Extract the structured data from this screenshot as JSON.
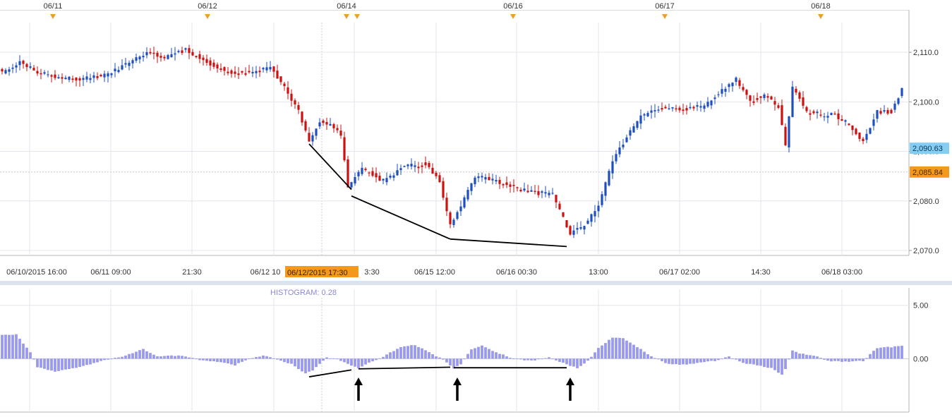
{
  "colors": {
    "up": "#1f4fbf",
    "down": "#cc1111",
    "histogram": "#9999ee",
    "grid": "#e3e6ec",
    "marker": "#f0a020",
    "label_blue": "#86cdf2",
    "label_orange": "#f39a1e",
    "histogram_label": "#8888dd"
  },
  "chart_data": [
    {
      "type": "candlestick",
      "title": "",
      "top_dates": [
        "06/11",
        "06/12",
        "06/14",
        "06/16",
        "06/17",
        "06/18"
      ],
      "time_labels": [
        "06/10/2015 16:00",
        "06/11 09:00",
        "21:30",
        "06/12 10",
        "3:30",
        "06/15 12:00",
        "06/16 00:30",
        "13:00",
        "06/17 02:00",
        "14:30",
        "06/18 03:00"
      ],
      "crosshair_time": "06/12/2015 17:30",
      "y_ticks": [
        "2,070.0",
        "2,080.0",
        "2,090.0",
        "2,100.0",
        "2,110.0"
      ],
      "ylim": [
        2069,
        2116
      ],
      "price_labels": {
        "last": "2,090.63",
        "crosshair": "2,085.84"
      },
      "anchors": [
        {
          "i": 0,
          "p": 2106
        },
        {
          "i": 5,
          "p": 2108
        },
        {
          "i": 10,
          "p": 2106
        },
        {
          "i": 15,
          "p": 2105
        },
        {
          "i": 22,
          "p": 2104.5
        },
        {
          "i": 30,
          "p": 2105.5
        },
        {
          "i": 36,
          "p": 2108
        },
        {
          "i": 42,
          "p": 2110
        },
        {
          "i": 46,
          "p": 2109
        },
        {
          "i": 52,
          "p": 2110.5
        },
        {
          "i": 58,
          "p": 2108
        },
        {
          "i": 64,
          "p": 2106
        },
        {
          "i": 72,
          "p": 2106
        },
        {
          "i": 76,
          "p": 2107
        },
        {
          "i": 80,
          "p": 2103
        },
        {
          "i": 84,
          "p": 2098
        },
        {
          "i": 87,
          "p": 2092
        },
        {
          "i": 90,
          "p": 2096
        },
        {
          "i": 94,
          "p": 2095
        },
        {
          "i": 96,
          "p": 2093
        },
        {
          "i": 98,
          "p": 2083
        },
        {
          "i": 102,
          "p": 2086.5
        },
        {
          "i": 108,
          "p": 2084
        },
        {
          "i": 114,
          "p": 2087
        },
        {
          "i": 120,
          "p": 2087.5
        },
        {
          "i": 124,
          "p": 2084
        },
        {
          "i": 127,
          "p": 2075
        },
        {
          "i": 130,
          "p": 2079
        },
        {
          "i": 134,
          "p": 2085
        },
        {
          "i": 140,
          "p": 2084
        },
        {
          "i": 146,
          "p": 2082.5
        },
        {
          "i": 152,
          "p": 2081.5
        },
        {
          "i": 156,
          "p": 2081.5
        },
        {
          "i": 158,
          "p": 2078
        },
        {
          "i": 161,
          "p": 2073.5
        },
        {
          "i": 165,
          "p": 2075
        },
        {
          "i": 169,
          "p": 2079
        },
        {
          "i": 173,
          "p": 2088
        },
        {
          "i": 177,
          "p": 2093
        },
        {
          "i": 181,
          "p": 2097
        },
        {
          "i": 187,
          "p": 2099
        },
        {
          "i": 193,
          "p": 2098.5
        },
        {
          "i": 199,
          "p": 2099
        },
        {
          "i": 205,
          "p": 2103
        },
        {
          "i": 208,
          "p": 2104.5
        },
        {
          "i": 212,
          "p": 2100
        },
        {
          "i": 216,
          "p": 2101.5
        },
        {
          "i": 220,
          "p": 2099
        },
        {
          "i": 222,
          "p": 2091
        },
        {
          "i": 224,
          "p": 2103
        },
        {
          "i": 228,
          "p": 2098
        },
        {
          "i": 232,
          "p": 2097
        },
        {
          "i": 236,
          "p": 2097.5
        },
        {
          "i": 240,
          "p": 2095
        },
        {
          "i": 244,
          "p": 2092
        },
        {
          "i": 248,
          "p": 2098
        },
        {
          "i": 252,
          "p": 2098
        },
        {
          "i": 255,
          "p": 2102.5
        }
      ],
      "trendlines": [
        {
          "from": [
            87,
            2091.5
          ],
          "to": [
            99,
            2082.3
          ]
        },
        {
          "from": [
            99,
            2081
          ],
          "to": [
            127,
            2072.3
          ]
        },
        {
          "from": [
            127,
            2072.3
          ],
          "to": [
            160,
            2070.8
          ]
        }
      ]
    },
    {
      "type": "histogram",
      "title": "",
      "label": "HISTOGRAM: 0.28",
      "y_ticks": [
        "0.00",
        "5.00"
      ],
      "ylim": [
        -5,
        6.5
      ],
      "anchors": [
        {
          "i": 0,
          "v": 2.2
        },
        {
          "i": 4,
          "v": 2.3
        },
        {
          "i": 8,
          "v": 0.6
        },
        {
          "i": 10,
          "v": -0.8
        },
        {
          "i": 15,
          "v": -1.2
        },
        {
          "i": 22,
          "v": -0.8
        },
        {
          "i": 28,
          "v": -0.2
        },
        {
          "i": 34,
          "v": 0.2
        },
        {
          "i": 40,
          "v": 0.9
        },
        {
          "i": 44,
          "v": 0.2
        },
        {
          "i": 50,
          "v": 0.3
        },
        {
          "i": 56,
          "v": -0.1
        },
        {
          "i": 62,
          "v": -0.3
        },
        {
          "i": 66,
          "v": -0.6
        },
        {
          "i": 70,
          "v": 0.0
        },
        {
          "i": 74,
          "v": 0.3
        },
        {
          "i": 78,
          "v": -0.1
        },
        {
          "i": 82,
          "v": -0.5
        },
        {
          "i": 86,
          "v": -1.4
        },
        {
          "i": 88,
          "v": -1.1
        },
        {
          "i": 92,
          "v": 0.1
        },
        {
          "i": 95,
          "v": 0.0
        },
        {
          "i": 98,
          "v": -0.5
        },
        {
          "i": 101,
          "v": -0.9
        },
        {
          "i": 104,
          "v": -0.4
        },
        {
          "i": 108,
          "v": 0.2
        },
        {
          "i": 113,
          "v": 1.1
        },
        {
          "i": 117,
          "v": 1.3
        },
        {
          "i": 121,
          "v": 0.6
        },
        {
          "i": 125,
          "v": -0.1
        },
        {
          "i": 128,
          "v": -0.9
        },
        {
          "i": 130,
          "v": -0.5
        },
        {
          "i": 133,
          "v": 0.9
        },
        {
          "i": 136,
          "v": 1.2
        },
        {
          "i": 140,
          "v": 0.6
        },
        {
          "i": 145,
          "v": 0.0
        },
        {
          "i": 150,
          "v": -0.2
        },
        {
          "i": 155,
          "v": 0.1
        },
        {
          "i": 159,
          "v": -0.4
        },
        {
          "i": 163,
          "v": -0.9
        },
        {
          "i": 166,
          "v": -0.2
        },
        {
          "i": 169,
          "v": 1.0
        },
        {
          "i": 173,
          "v": 2.0
        },
        {
          "i": 176,
          "v": 1.9
        },
        {
          "i": 180,
          "v": 1.1
        },
        {
          "i": 184,
          "v": 0.2
        },
        {
          "i": 188,
          "v": -0.4
        },
        {
          "i": 192,
          "v": -0.6
        },
        {
          "i": 197,
          "v": -0.4
        },
        {
          "i": 202,
          "v": -0.2
        },
        {
          "i": 206,
          "v": 0.2
        },
        {
          "i": 210,
          "v": -0.4
        },
        {
          "i": 214,
          "v": -0.6
        },
        {
          "i": 218,
          "v": -0.9
        },
        {
          "i": 221,
          "v": -1.5
        },
        {
          "i": 222,
          "v": -1.0
        },
        {
          "i": 224,
          "v": 0.8
        },
        {
          "i": 226,
          "v": 0.5
        },
        {
          "i": 230,
          "v": 0.3
        },
        {
          "i": 234,
          "v": -0.2
        },
        {
          "i": 240,
          "v": -0.3
        },
        {
          "i": 244,
          "v": -0.2
        },
        {
          "i": 248,
          "v": 1.0
        },
        {
          "i": 252,
          "v": 1.1
        },
        {
          "i": 255,
          "v": 1.2
        }
      ],
      "trendlines": [
        {
          "from": [
            87,
            -1.7
          ],
          "to": [
            99,
            -1.05
          ]
        },
        {
          "from": [
            101,
            -0.95
          ],
          "to": [
            127,
            -0.8
          ]
        },
        {
          "from": [
            128,
            -0.85
          ],
          "to": [
            160,
            -0.85
          ]
        }
      ],
      "arrows_at": [
        101,
        129,
        161
      ]
    }
  ]
}
